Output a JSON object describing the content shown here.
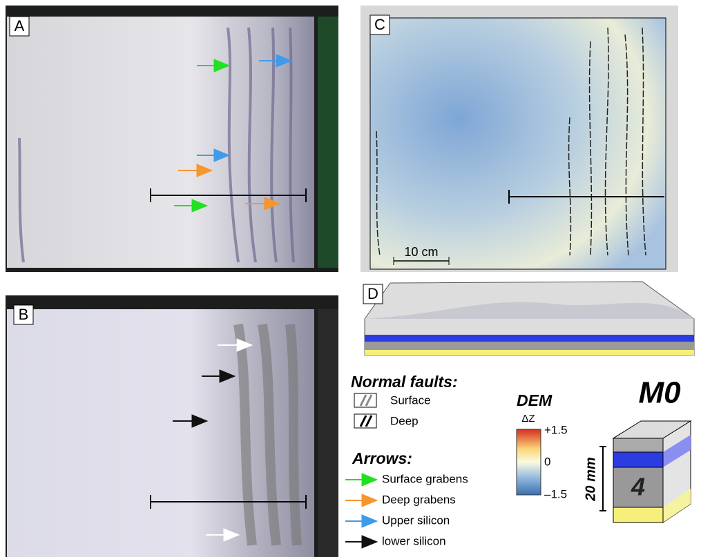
{
  "panels": [
    {
      "label": "A"
    },
    {
      "label": "B"
    },
    {
      "label": "C",
      "scale_bar": "10 cm"
    },
    {
      "label": "D"
    }
  ],
  "legend": {
    "normal_faults": {
      "title": "Normal faults:",
      "items": [
        "Surface",
        "Deep"
      ]
    },
    "arrows": {
      "title": "Arrows:",
      "items": [
        {
          "label": "Surface grabens",
          "color": "#22e022"
        },
        {
          "label": "Deep grabens",
          "color": "#f5962e"
        },
        {
          "label": "Upper silicon",
          "color": "#3f9bea"
        },
        {
          "label": "lower silicon",
          "color": "#111111"
        }
      ]
    }
  },
  "dem": {
    "title": "DEM",
    "axis_label": "ΔZ",
    "ticks": [
      "+1.5",
      "0",
      "–1.5"
    ]
  },
  "model": {
    "name": "M0",
    "thickness": "20 mm",
    "layer_number": "4"
  }
}
